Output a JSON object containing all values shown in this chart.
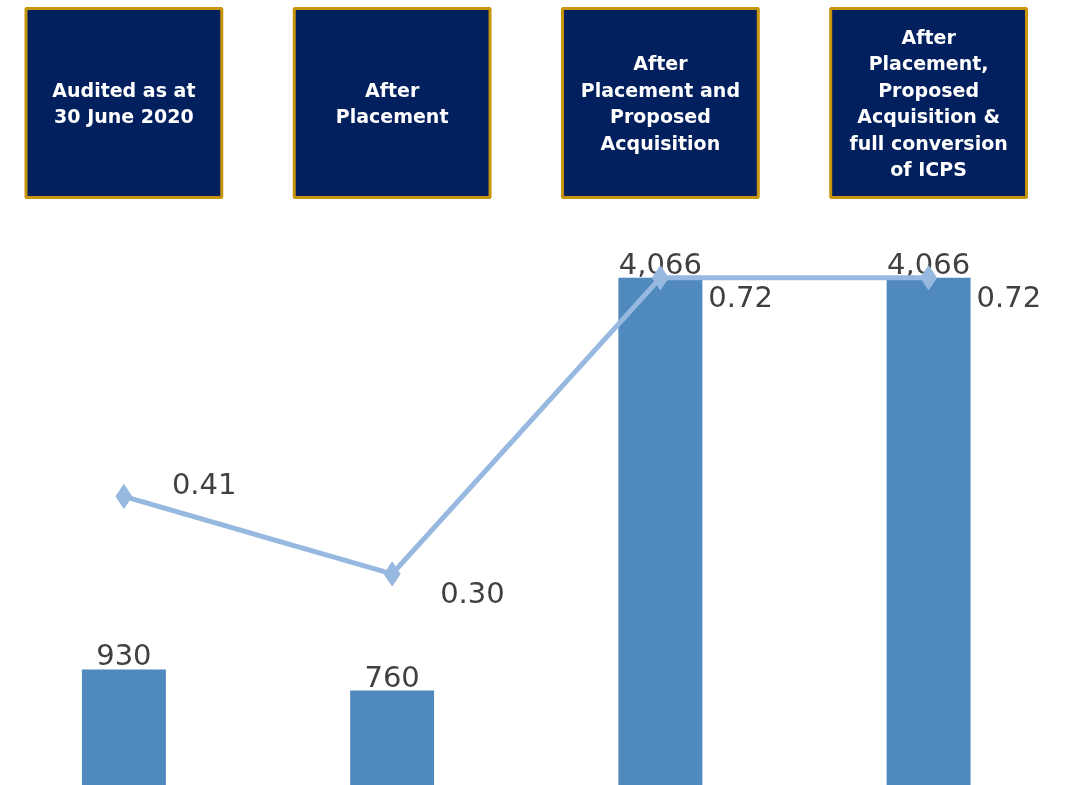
{
  "chart_data": {
    "type": "bar",
    "categories": [
      "Audited as at\n30 June 2020",
      "After\nPlacement",
      "After\nPlacement and\nProposed\nAcquisition",
      "After\nPlacement,\nProposed\nAcquisition &\nfull conversion\nof ICPS"
    ],
    "series": [
      {
        "color": "#4f89bd",
        "values": [
          930,
          760,
          4066,
          4066
        ],
        "value_labels": [
          "930",
          "760",
          "4,066",
          "4,066"
        ]
      },
      {
        "type": "line",
        "axis": "y2",
        "color": "#97b9e0",
        "marker": "diamond",
        "values": [
          0.41,
          0.3,
          0.72,
          0.72
        ],
        "value_labels": [
          "0.41",
          "0.30",
          "0.72",
          "0.72"
        ]
      }
    ],
    "tick_labels": false,
    "grid": false
  }
}
